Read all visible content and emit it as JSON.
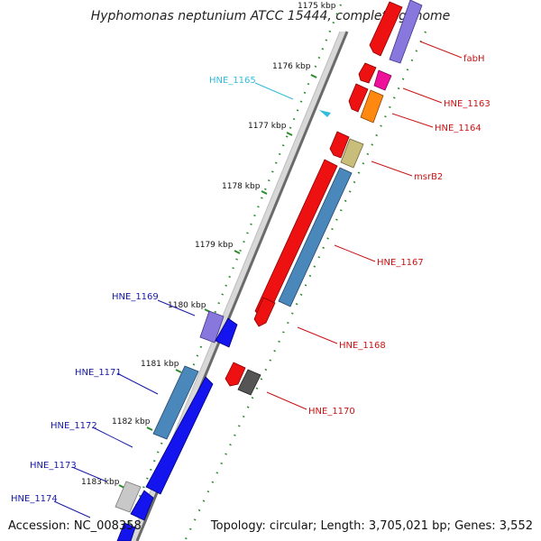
{
  "title": "Hyphomonas neptunium ATCC 15444, complete genome",
  "footer": {
    "accession": "Accession: NC_008358",
    "summary": "Topology: circular; Length: 3,705,021 bp; Genes: 3,552"
  },
  "ticks": [
    "1175 kbp",
    "1176 kbp",
    "1177 kbp",
    "1178 kbp",
    "1179 kbp",
    "1180 kbp",
    "1181 kbp",
    "1182 kbp",
    "1183 kbp"
  ],
  "genes": [
    {
      "label": "fabH",
      "color": "#c81414"
    },
    {
      "label": "HNE_1163",
      "color": "#c81414"
    },
    {
      "label": "HNE_1164",
      "color": "#c81414"
    },
    {
      "label": "HNE_1165",
      "color": "#33bbdd"
    },
    {
      "label": "msrB2",
      "color": "#c81414"
    },
    {
      "label": "HNE_1167",
      "color": "#c81414"
    },
    {
      "label": "HNE_1168",
      "color": "#c81414"
    },
    {
      "label": "HNE_1169",
      "color": "#1a1aa6"
    },
    {
      "label": "HNE_1170",
      "color": "#c81414"
    },
    {
      "label": "HNE_1171",
      "color": "#1a1aa6"
    },
    {
      "label": "HNE_1172",
      "color": "#1a1aa6"
    },
    {
      "label": "HNE_1173",
      "color": "#1a1aa6"
    },
    {
      "label": "HNE_1174",
      "color": "#1a1aa6"
    }
  ]
}
